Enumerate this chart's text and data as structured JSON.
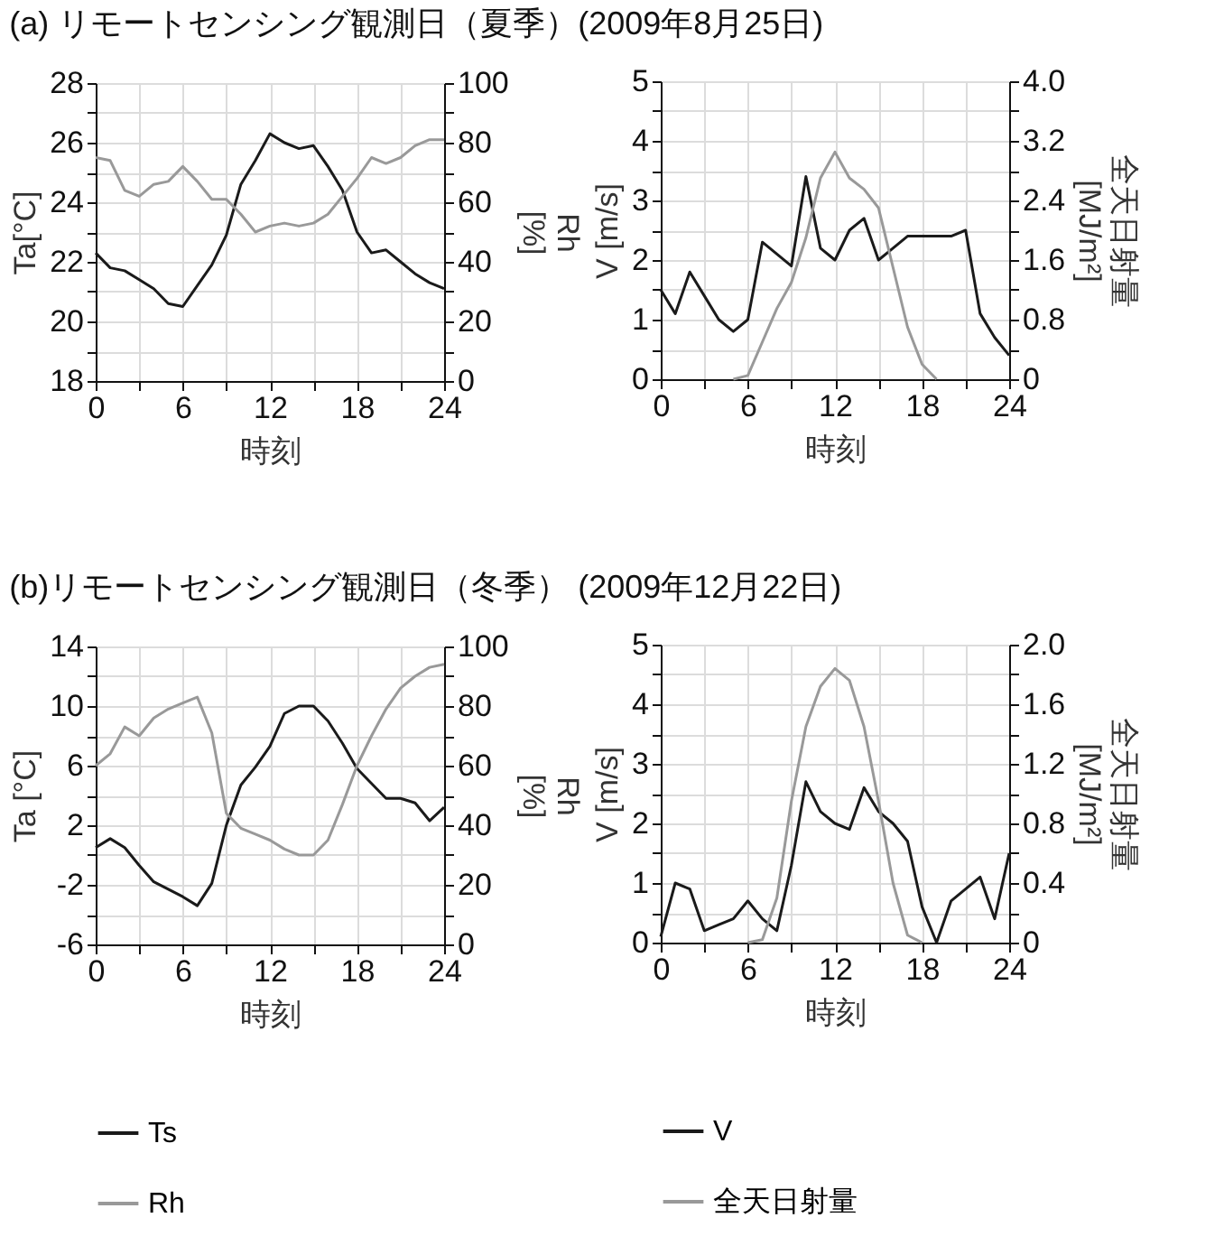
{
  "chart_data": [
    {
      "type": "line",
      "title": "(a) リモートセンシング観測日（夏季）(2009年8月25日)",
      "xlabel": "時刻",
      "ylabel": "Ta[°C]",
      "y2label": "Rh [%]",
      "grid": true,
      "x": [
        0,
        1,
        2,
        3,
        4,
        5,
        6,
        7,
        8,
        9,
        10,
        11,
        12,
        13,
        14,
        15,
        16,
        17,
        18,
        19,
        20,
        21,
        22,
        23,
        24
      ],
      "xlim": [
        0,
        24
      ],
      "xticks": [
        0,
        {
          "value": 3,
          "label": null
        },
        6,
        {
          "value": 9,
          "label": null
        },
        12,
        {
          "value": 15,
          "label": null
        },
        18,
        {
          "value": 21,
          "label": null
        },
        24
      ],
      "ylim": [
        18,
        28
      ],
      "yticks": [
        18,
        {
          "value": 19,
          "label": null
        },
        20,
        {
          "value": 21,
          "label": null
        },
        22,
        {
          "value": 23,
          "label": null
        },
        24,
        {
          "value": 25,
          "label": null
        },
        26,
        {
          "value": 27,
          "label": null
        },
        28
      ],
      "y2lim": [
        0,
        100
      ],
      "y2ticks": [
        0,
        {
          "value": 10,
          "label": null
        },
        20,
        {
          "value": 30,
          "label": null
        },
        40,
        {
          "value": 50,
          "label": null
        },
        60,
        {
          "value": 70,
          "label": null
        },
        80,
        {
          "value": 90,
          "label": null
        },
        100
      ],
      "series": [
        {
          "color": "#1a1a1a",
          "values": [
            22.3,
            21.8,
            21.7,
            21.4,
            21.1,
            20.6,
            20.5,
            21.2,
            21.9,
            22.9,
            24.6,
            25.4,
            26.3,
            26.0,
            25.8,
            25.9,
            25.2,
            24.4,
            23.0,
            22.3,
            22.4,
            22.0,
            21.6,
            21.3,
            21.1
          ]
        },
        {
          "color": "#999999",
          "axis": "y2",
          "values": [
            75,
            74,
            64,
            62,
            66,
            67,
            72,
            67,
            61,
            61,
            56,
            50,
            52,
            53,
            52,
            53,
            56,
            62,
            68,
            75,
            73,
            75,
            79,
            81,
            81
          ]
        }
      ]
    },
    {
      "type": "line",
      "xlabel": "時刻",
      "ylabel": "V [m/s]",
      "y2label": "全天日射量 [MJ/m²]",
      "grid": true,
      "x": [
        0,
        1,
        2,
        3,
        4,
        5,
        6,
        7,
        8,
        9,
        10,
        11,
        12,
        13,
        14,
        15,
        16,
        17,
        18,
        19,
        20,
        21,
        22,
        23,
        24
      ],
      "xlim": [
        0,
        24
      ],
      "xticks": [
        0,
        {
          "value": 3,
          "label": null
        },
        6,
        {
          "value": 9,
          "label": null
        },
        12,
        {
          "value": 15,
          "label": null
        },
        18,
        {
          "value": 21,
          "label": null
        },
        24
      ],
      "ylim": [
        0,
        5
      ],
      "yticks": [
        0,
        {
          "value": 0.5,
          "label": null
        },
        1,
        {
          "value": 1.5,
          "label": null
        },
        2,
        {
          "value": 2.5,
          "label": null
        },
        3,
        {
          "value": 3.5,
          "label": null
        },
        4,
        {
          "value": 4.5,
          "label": null
        },
        5
      ],
      "y2lim": [
        0,
        4
      ],
      "y2ticks": [
        {
          "value": 0,
          "label": "0"
        },
        {
          "value": 0.4,
          "label": null
        },
        {
          "value": 0.8,
          "label": "0.8"
        },
        {
          "value": 1.2,
          "label": null
        },
        {
          "value": 1.6,
          "label": "1.6"
        },
        {
          "value": 2.0,
          "label": null
        },
        {
          "value": 2.4,
          "label": "2.4"
        },
        {
          "value": 2.8,
          "label": null
        },
        {
          "value": 3.2,
          "label": "3.2"
        },
        {
          "value": 3.6,
          "label": null
        },
        {
          "value": 4,
          "label": "4.0"
        }
      ],
      "series": [
        {
          "color": "#1a1a1a",
          "values": [
            1.5,
            1.1,
            1.8,
            1.4,
            1.0,
            0.8,
            1.0,
            2.3,
            2.1,
            1.9,
            3.4,
            2.2,
            2.0,
            2.5,
            2.7,
            2.0,
            2.2,
            2.4,
            2.4,
            2.4,
            2.4,
            2.5,
            1.1,
            0.7,
            0.4
          ]
        },
        {
          "color": "#999999",
          "axis": "y2",
          "values": [
            null,
            null,
            null,
            null,
            null,
            0,
            0.05,
            0.5,
            0.95,
            1.3,
            1.9,
            2.7,
            3.05,
            2.7,
            2.55,
            2.3,
            1.5,
            0.7,
            0.2,
            0,
            null,
            null,
            null,
            null,
            null
          ]
        }
      ]
    },
    {
      "type": "line",
      "title": "(b)リモートセンシング観測日（冬季） (2009年12月22日)",
      "xlabel": "時刻",
      "ylabel": "Ta [°C]",
      "y2label": "Rh [%]",
      "grid": true,
      "legend": "bottom",
      "x": [
        0,
        1,
        2,
        3,
        4,
        5,
        6,
        7,
        8,
        9,
        10,
        11,
        12,
        13,
        14,
        15,
        16,
        17,
        18,
        19,
        20,
        21,
        22,
        23,
        24
      ],
      "xlim": [
        0,
        24
      ],
      "xticks": [
        0,
        {
          "value": 3,
          "label": null
        },
        6,
        {
          "value": 9,
          "label": null
        },
        12,
        {
          "value": 15,
          "label": null
        },
        18,
        {
          "value": 21,
          "label": null
        },
        24
      ],
      "ylim": [
        -6,
        14
      ],
      "yticks": [
        -6,
        {
          "value": -4,
          "label": null
        },
        -2,
        {
          "value": 0,
          "label": null
        },
        2,
        {
          "value": 4,
          "label": null
        },
        6,
        {
          "value": 8,
          "label": null
        },
        10,
        {
          "value": 12,
          "label": null
        },
        14
      ],
      "y2lim": [
        0,
        100
      ],
      "y2ticks": [
        0,
        {
          "value": 10,
          "label": null
        },
        20,
        {
          "value": 30,
          "label": null
        },
        40,
        {
          "value": 50,
          "label": null
        },
        60,
        {
          "value": 70,
          "label": null
        },
        80,
        {
          "value": 90,
          "label": null
        },
        100
      ],
      "series": [
        {
          "name": "Ts",
          "color": "#1a1a1a",
          "values": [
            0.5,
            1.1,
            0.5,
            -0.7,
            -1.8,
            -2.3,
            -2.8,
            -3.4,
            -1.9,
            2.0,
            4.7,
            5.9,
            7.3,
            9.5,
            10.0,
            10.0,
            9.0,
            7.5,
            5.8,
            4.8,
            3.8,
            3.8,
            3.5,
            2.3,
            3.2
          ]
        },
        {
          "name": "Rh",
          "color": "#999999",
          "axis": "y2",
          "values": [
            60,
            64,
            73,
            70,
            76,
            79,
            81,
            83,
            71,
            44,
            39,
            37,
            35,
            32,
            30,
            30,
            35,
            47,
            60,
            70,
            79,
            86,
            90,
            93,
            94
          ]
        }
      ]
    },
    {
      "type": "line",
      "xlabel": "時刻",
      "ylabel": "V [m/s]",
      "y2label": "全天日射量 [MJ/m²]",
      "grid": true,
      "legend": "bottom",
      "x": [
        0,
        1,
        2,
        3,
        4,
        5,
        6,
        7,
        8,
        9,
        10,
        11,
        12,
        13,
        14,
        15,
        16,
        17,
        18,
        19,
        20,
        21,
        22,
        23,
        24
      ],
      "xlim": [
        0,
        24
      ],
      "xticks": [
        0,
        {
          "value": 3,
          "label": null
        },
        6,
        {
          "value": 9,
          "label": null
        },
        12,
        {
          "value": 15,
          "label": null
        },
        18,
        {
          "value": 21,
          "label": null
        },
        24
      ],
      "ylim": [
        0,
        5
      ],
      "yticks": [
        0,
        {
          "value": 0.5,
          "label": null
        },
        1,
        {
          "value": 1.5,
          "label": null
        },
        2,
        {
          "value": 2.5,
          "label": null
        },
        3,
        {
          "value": 3.5,
          "label": null
        },
        4,
        {
          "value": 4.5,
          "label": null
        },
        5
      ],
      "y2lim": [
        0,
        2
      ],
      "y2ticks": [
        {
          "value": 0,
          "label": "0"
        },
        {
          "value": 0.2,
          "label": null
        },
        {
          "value": 0.4,
          "label": "0.4"
        },
        {
          "value": 0.6,
          "label": null
        },
        {
          "value": 0.8,
          "label": "0.8"
        },
        {
          "value": 1.0,
          "label": null
        },
        {
          "value": 1.2,
          "label": "1.2"
        },
        {
          "value": 1.4,
          "label": null
        },
        {
          "value": 1.6,
          "label": "1.6"
        },
        {
          "value": 1.8,
          "label": null
        },
        {
          "value": 2,
          "label": "2.0"
        }
      ],
      "series": [
        {
          "name": "V",
          "color": "#1a1a1a",
          "values": [
            0.1,
            1.0,
            0.9,
            0.2,
            0.3,
            0.4,
            0.7,
            0.4,
            0.2,
            1.3,
            2.7,
            2.2,
            2.0,
            1.9,
            2.6,
            2.2,
            2.0,
            1.7,
            0.6,
            0,
            0.7,
            0.9,
            1.1,
            0.4,
            1.5
          ]
        },
        {
          "name": "全天日射量",
          "color": "#999999",
          "axis": "y2",
          "values": [
            null,
            null,
            null,
            null,
            null,
            null,
            0,
            0.02,
            0.3,
            0.95,
            1.45,
            1.72,
            1.84,
            1.76,
            1.45,
            0.95,
            0.4,
            0.05,
            0,
            null,
            null,
            null,
            null,
            null,
            null
          ]
        }
      ]
    }
  ]
}
